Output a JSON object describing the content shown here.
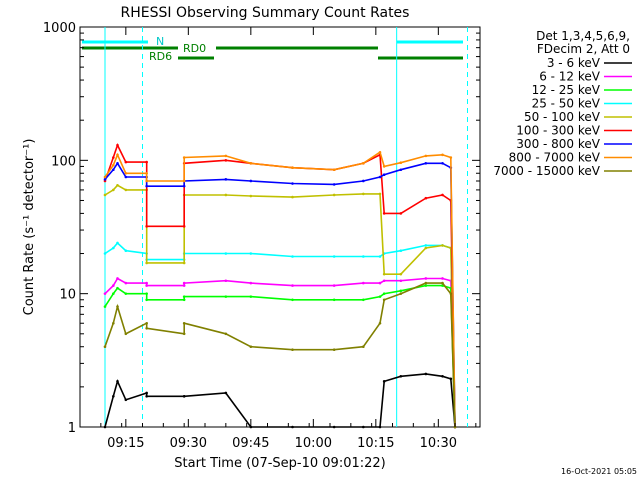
{
  "chart_data": {
    "type": "line",
    "title": "RHESSI Observing Summary Count Rates",
    "xlabel": "Start Time (07-Sep-10 09:01:22)",
    "ylabel": "Count Rate (s⁻¹ detector⁻¹)",
    "y_scale": "log",
    "ylim": [
      1,
      1000
    ],
    "xlim": [
      "09:04",
      "10:40"
    ],
    "x_ticks": [
      "09:15",
      "09:30",
      "09:45",
      "10:00",
      "10:15",
      "10:30"
    ],
    "y_ticks": [
      "1",
      "10",
      "100",
      "1000"
    ],
    "grid": false,
    "legend_position": "top-right",
    "legend_header": [
      "Det 1,3,4,5,6,9,",
      "FDecim 2, Att 0"
    ],
    "timestamp": "16-Oct-2021 05:05",
    "markers": [
      {
        "label": "N",
        "color": "#00ffff"
      },
      {
        "label": "RD0",
        "color": "#008000"
      },
      {
        "label": "RD6",
        "color": "#008000"
      }
    ],
    "night_lines": [
      "09:10",
      "09:19",
      "10:20",
      "10:37"
    ],
    "x": [
      "09:10",
      "09:12",
      "09:13",
      "09:15",
      "09:20",
      "09:20",
      "09:29",
      "09:29",
      "09:39",
      "09:45",
      "09:55",
      "10:05",
      "10:12",
      "10:16",
      "10:17",
      "10:21",
      "10:27",
      "10:31",
      "10:33",
      "10:34"
    ],
    "series": [
      {
        "name": "3 - 6 keV",
        "color": "#000000",
        "values": [
          1,
          1.7,
          2.2,
          1.6,
          1.8,
          1.7,
          1.7,
          1.7,
          1.8,
          1,
          1,
          1,
          1,
          1,
          2.2,
          2.4,
          2.5,
          2.4,
          2.3,
          1
        ]
      },
      {
        "name": "6 - 12 keV",
        "color": "#ff00ff",
        "values": [
          10,
          11.5,
          13,
          12,
          12,
          11.5,
          11.5,
          12,
          12.5,
          12,
          11.5,
          11.5,
          12,
          12,
          12.5,
          12.5,
          13,
          13,
          12.5,
          1
        ]
      },
      {
        "name": "12 - 25 keV",
        "color": "#00ff00",
        "values": [
          8,
          10,
          11,
          10,
          10,
          9,
          9,
          9.5,
          9.5,
          9.5,
          9,
          9,
          9,
          9.5,
          10,
          10.5,
          11.5,
          11.5,
          11,
          1
        ]
      },
      {
        "name": "25 - 50 keV",
        "color": "#00ffff",
        "values": [
          20,
          22,
          24,
          21,
          20,
          18,
          18,
          20,
          20,
          20,
          19,
          19,
          19,
          19,
          20,
          21,
          23,
          23,
          22,
          1
        ]
      },
      {
        "name": "50 - 100 keV",
        "color": "#c0c000",
        "values": [
          55,
          60,
          65,
          60,
          60,
          17,
          17,
          55,
          55,
          54,
          53,
          55,
          56,
          56,
          14,
          14,
          22,
          23,
          22,
          1
        ]
      },
      {
        "name": "100 - 300 keV",
        "color": "#ff0000",
        "values": [
          70,
          105,
          130,
          97,
          97,
          32,
          32,
          95,
          100,
          95,
          88,
          85,
          95,
          110,
          40,
          40,
          52,
          55,
          50,
          1
        ]
      },
      {
        "name": "300 - 800 keV",
        "color": "#0000ff",
        "values": [
          72,
          85,
          95,
          75,
          75,
          64,
          64,
          70,
          72,
          70,
          67,
          66,
          70,
          75,
          78,
          85,
          95,
          95,
          88,
          1
        ]
      },
      {
        "name": "800 - 7000 keV",
        "color": "#ff8c00",
        "values": [
          75,
          92,
          110,
          80,
          80,
          70,
          70,
          105,
          108,
          95,
          88,
          85,
          95,
          115,
          90,
          96,
          108,
          110,
          105,
          1
        ]
      },
      {
        "name": "7000 - 15000 keV",
        "color": "#808000",
        "values": [
          4,
          6,
          8,
          5,
          6,
          5.5,
          5,
          6,
          5,
          4,
          3.8,
          3.8,
          4,
          6,
          9,
          10,
          12,
          12,
          10,
          1
        ]
      }
    ]
  }
}
